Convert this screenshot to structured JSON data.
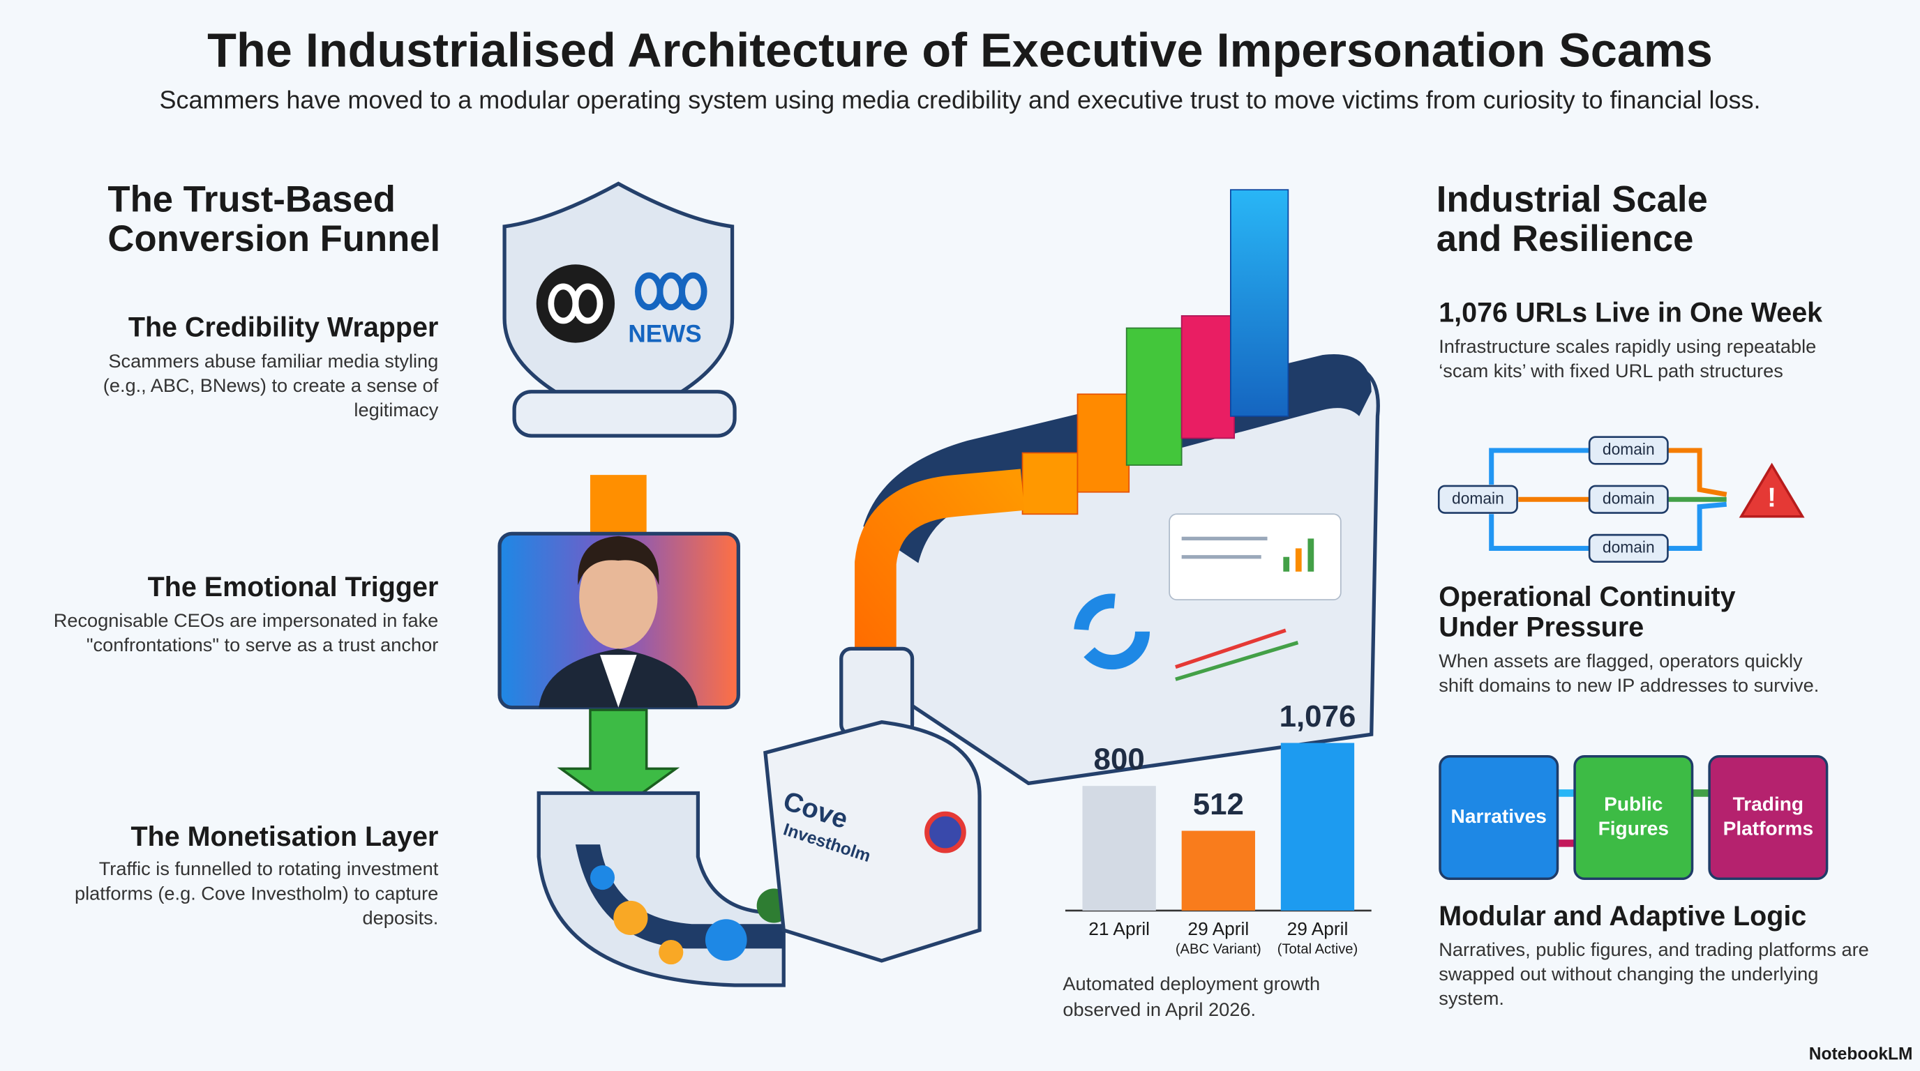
{
  "header": {
    "title": "The Industrialised Architecture of Executive Impersonation Scams",
    "subtitle": "Scammers have moved to a modular operating system using media credibility and executive trust to move victims from curiosity to financial loss."
  },
  "left": {
    "heading": [
      "The Trust-Based",
      "Conversion Funnel"
    ],
    "items": [
      {
        "title": "The Credibility Wrapper",
        "text": [
          "Scammers abuse familiar media styling",
          "(e.g., ABC, BNews) to create a sense of",
          "legitimacy"
        ]
      },
      {
        "title": "The Emotional Trigger",
        "text": [
          "Recognisable CEOs are impersonated in fake",
          "\"confrontations\" to serve as a trust anchor"
        ]
      },
      {
        "title": "The Monetisation Layer",
        "text": [
          "Traffic is funnelled to rotating investment",
          "platforms (e.g. Cove Investholm) to capture",
          "deposits."
        ]
      }
    ]
  },
  "right": {
    "heading": [
      "Industrial Scale",
      "and Resilience"
    ],
    "items": [
      {
        "title": [
          "1,076 URLs Live in One Week"
        ],
        "text": [
          "Infrastructure scales rapidly using repeatable",
          "‘scam kits’ with fixed URL path structures"
        ]
      },
      {
        "title": [
          "Operational Continuity",
          "Under Pressure"
        ],
        "text": [
          "When assets are flagged, operators quickly",
          "shift domains to new IP addresses to survive."
        ]
      },
      {
        "title": [
          "Modular and Adaptive Logic"
        ],
        "text": [
          "Narratives, public figures, and trading platforms are",
          "swapped out without changing the underlying",
          "system."
        ]
      }
    ]
  },
  "domain_diagram": {
    "source": "domain",
    "targets": [
      "domain",
      "domain",
      "domain"
    ]
  },
  "flow": {
    "nodes": [
      [
        "Narratives"
      ],
      [
        "Public",
        "Figures"
      ],
      [
        "Trading",
        "Platforms"
      ]
    ]
  },
  "illustration": {
    "logo_text": "NEWS",
    "platform_name": [
      "Cove",
      "Investholm"
    ]
  },
  "bar_chart": {
    "type": "bar",
    "categories": [
      {
        "label": "21 April"
      },
      {
        "label": "29 April",
        "note": "(ABC Variant)"
      },
      {
        "label": "29 April",
        "note": "(Total Active)"
      }
    ],
    "values": [
      800,
      512,
      1076
    ],
    "value_labels": [
      "800",
      "512",
      "1,076"
    ],
    "colors": [
      "#d3dae4",
      "#f97c1c",
      "#1d9bf0"
    ],
    "caption": [
      "Automated deployment growth",
      "observed in April 2026."
    ]
  },
  "footer": {
    "brand": "NotebookLM"
  }
}
